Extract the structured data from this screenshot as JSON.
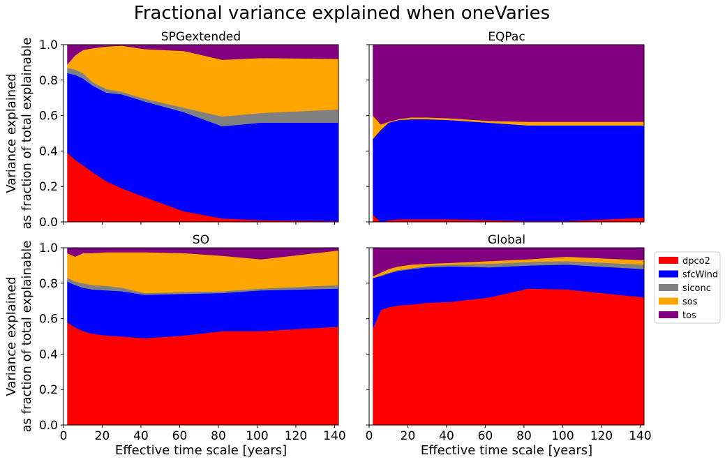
{
  "figure_title": "Fractional variance explained when oneVaries",
  "chart_data": {
    "type": "area",
    "stacked": true,
    "xlabel": "Effective time scale [years]",
    "ylabel_line1": "Variance explained",
    "ylabel_line2": "as fraction of total explainable",
    "xlim": [
      0,
      142
    ],
    "ylim": [
      0,
      1
    ],
    "xticks": [
      0,
      20,
      40,
      60,
      80,
      100,
      120,
      140
    ],
    "yticks": [
      0.0,
      0.2,
      0.4,
      0.6,
      0.8,
      1.0
    ],
    "ytick_labels": [
      "0.0",
      "0.2",
      "0.4",
      "0.6",
      "0.8",
      "1.0"
    ],
    "legend": {
      "placement": "outside-right",
      "entries": [
        {
          "name": "dpco2",
          "color": "#ff0000"
        },
        {
          "name": "sfcWind",
          "color": "#0000ff"
        },
        {
          "name": "siconc",
          "color": "#808080"
        },
        {
          "name": "sos",
          "color": "#ffa500"
        },
        {
          "name": "tos",
          "color": "#800080"
        }
      ]
    },
    "panels": [
      {
        "title": "SPGextended",
        "x": [
          2,
          6,
          10,
          15,
          22,
          30,
          42,
          62,
          82,
          102,
          142
        ],
        "series": [
          {
            "name": "dpco2",
            "values": [
              0.39,
              0.35,
              0.32,
              0.28,
              0.23,
              0.19,
              0.14,
              0.06,
              0.02,
              0.01,
              0.005
            ]
          },
          {
            "name": "sfcWind",
            "values": [
              0.45,
              0.48,
              0.49,
              0.49,
              0.5,
              0.53,
              0.54,
              0.56,
              0.52,
              0.55,
              0.555
            ]
          },
          {
            "name": "siconc",
            "values": [
              0.03,
              0.03,
              0.03,
              0.02,
              0.02,
              0.015,
              0.015,
              0.025,
              0.055,
              0.055,
              0.075
            ]
          },
          {
            "name": "sos",
            "values": [
              0.02,
              0.08,
              0.13,
              0.19,
              0.24,
              0.26,
              0.28,
              0.32,
              0.32,
              0.31,
              0.285
            ]
          },
          {
            "name": "tos",
            "values": [
              0.11,
              0.06,
              0.03,
              0.02,
              0.01,
              0.005,
              0.025,
              0.035,
              0.085,
              0.075,
              0.08
            ]
          }
        ]
      },
      {
        "title": "EQPac",
        "x": [
          2,
          6,
          10,
          15,
          22,
          30,
          42,
          62,
          82,
          102,
          142
        ],
        "series": [
          {
            "name": "dpco2",
            "values": [
              0.04,
              0.0,
              0.01,
              0.015,
              0.015,
              0.015,
              0.015,
              0.01,
              0.005,
              0.005,
              0.025
            ]
          },
          {
            "name": "sfcWind",
            "values": [
              0.43,
              0.52,
              0.55,
              0.56,
              0.565,
              0.565,
              0.56,
              0.55,
              0.54,
              0.54,
              0.52
            ]
          },
          {
            "name": "siconc",
            "values": [
              0.0,
              0.0,
              0.0,
              0.0,
              0.0,
              0.0,
              0.0,
              0.0,
              0.0,
              0.0,
              0.0
            ]
          },
          {
            "name": "sos",
            "values": [
              0.13,
              0.03,
              0.005,
              0.005,
              0.01,
              0.01,
              0.01,
              0.01,
              0.02,
              0.02,
              0.02
            ]
          },
          {
            "name": "tos",
            "values": [
              0.4,
              0.45,
              0.435,
              0.42,
              0.41,
              0.41,
              0.415,
              0.43,
              0.435,
              0.435,
              0.435
            ]
          }
        ]
      },
      {
        "title": "SO",
        "x": [
          2,
          6,
          10,
          15,
          22,
          30,
          42,
          62,
          82,
          102,
          142
        ],
        "series": [
          {
            "name": "dpco2",
            "values": [
              0.58,
              0.55,
              0.53,
              0.515,
              0.505,
              0.5,
              0.49,
              0.505,
              0.53,
              0.53,
              0.555
            ]
          },
          {
            "name": "sfcWind",
            "values": [
              0.23,
              0.24,
              0.245,
              0.25,
              0.255,
              0.255,
              0.245,
              0.235,
              0.215,
              0.23,
              0.215
            ]
          },
          {
            "name": "siconc",
            "values": [
              0.02,
              0.02,
              0.025,
              0.025,
              0.025,
              0.02,
              0.01,
              0.01,
              0.01,
              0.01,
              0.02
            ]
          },
          {
            "name": "sos",
            "values": [
              0.14,
              0.14,
              0.17,
              0.18,
              0.19,
              0.2,
              0.23,
              0.22,
              0.2,
              0.165,
              0.195
            ]
          },
          {
            "name": "tos",
            "values": [
              0.03,
              0.05,
              0.03,
              0.03,
              0.025,
              0.025,
              0.025,
              0.03,
              0.045,
              0.065,
              0.015
            ]
          }
        ]
      },
      {
        "title": "Global",
        "x": [
          2,
          6,
          10,
          15,
          22,
          30,
          42,
          62,
          82,
          102,
          142
        ],
        "series": [
          {
            "name": "dpco2",
            "values": [
              0.55,
              0.65,
              0.665,
              0.675,
              0.68,
              0.69,
              0.695,
              0.72,
              0.77,
              0.765,
              0.72
            ]
          },
          {
            "name": "sfcWind",
            "values": [
              0.28,
              0.19,
              0.19,
              0.195,
              0.2,
              0.2,
              0.2,
              0.17,
              0.13,
              0.14,
              0.16
            ]
          },
          {
            "name": "siconc",
            "values": [
              0.0,
              0.005,
              0.005,
              0.005,
              0.005,
              0.01,
              0.01,
              0.02,
              0.02,
              0.02,
              0.025
            ]
          },
          {
            "name": "sos",
            "values": [
              0.01,
              0.015,
              0.02,
              0.02,
              0.02,
              0.01,
              0.01,
              0.015,
              0.015,
              0.025,
              0.025
            ]
          },
          {
            "name": "tos",
            "values": [
              0.16,
              0.14,
              0.12,
              0.105,
              0.095,
              0.09,
              0.085,
              0.075,
              0.065,
              0.05,
              0.07
            ]
          }
        ]
      }
    ]
  }
}
